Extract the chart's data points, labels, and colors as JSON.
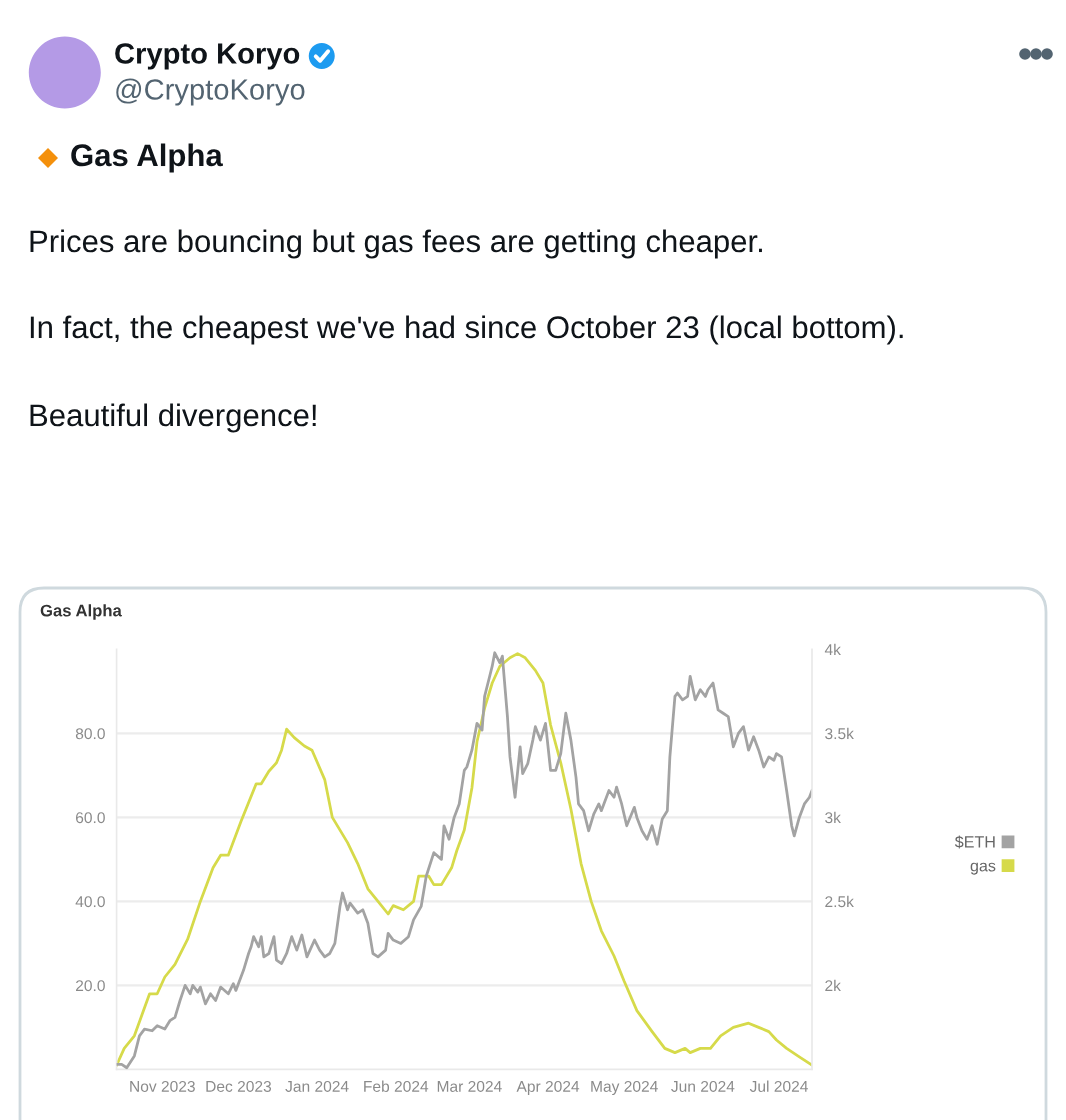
{
  "chart_data": {
    "type": "line",
    "title": "Gas Alpha",
    "annotations": [
      "Crypto Koryo",
      "@CryptoKoryo",
      "Gas Alpha",
      "Prices are bouncing but gas fees are getting cheaper.",
      "In fact, the cheapest we've had since October 23 (local bottom).",
      "Beautiful divergence!"
    ],
    "series": [
      {
        "name": "$ETH",
        "color": "#a3a3a3",
        "axis": "y2",
        "x": [
          "2023-10-14",
          "2023-10-16",
          "2023-10-18",
          "2023-10-21",
          "2023-10-23",
          "2023-10-25",
          "2023-10-28",
          "2023-10-30",
          "2023-11-02",
          "2023-11-04",
          "2023-11-06",
          "2023-11-08",
          "2023-11-10",
          "2023-11-12",
          "2023-11-13",
          "2023-11-15",
          "2023-11-16",
          "2023-11-18",
          "2023-11-20",
          "2023-11-22",
          "2023-11-24",
          "2023-11-27",
          "2023-11-29",
          "2023-11-30",
          "2023-12-03",
          "2023-12-05",
          "2023-12-06",
          "2023-12-07",
          "2023-12-09",
          "2023-12-10",
          "2023-12-11",
          "2023-12-13",
          "2023-12-15",
          "2023-12-16",
          "2023-12-18",
          "2023-12-20",
          "2023-12-22",
          "2023-12-24",
          "2023-12-26",
          "2023-12-28",
          "2023-12-31",
          "2024-01-02",
          "2024-01-04",
          "2024-01-06",
          "2024-01-08",
          "2024-01-10",
          "2024-01-11",
          "2024-01-13",
          "2024-01-14",
          "2024-01-17",
          "2024-01-19",
          "2024-01-21",
          "2024-01-23",
          "2024-01-25",
          "2024-01-28",
          "2024-01-29",
          "2024-01-31",
          "2024-02-03",
          "2024-02-06",
          "2024-02-08",
          "2024-02-11",
          "2024-02-13",
          "2024-02-16",
          "2024-02-19",
          "2024-02-20",
          "2024-02-22",
          "2024-02-24",
          "2024-02-26",
          "2024-02-28",
          "2024-02-29",
          "2024-03-02",
          "2024-03-04",
          "2024-03-06",
          "2024-03-07",
          "2024-03-09",
          "2024-03-10",
          "2024-03-11",
          "2024-03-13",
          "2024-03-14",
          "2024-03-16",
          "2024-03-17",
          "2024-03-19",
          "2024-03-21",
          "2024-03-22",
          "2024-03-24",
          "2024-03-26",
          "2024-03-27",
          "2024-03-29",
          "2024-03-31",
          "2024-04-02",
          "2024-04-04",
          "2024-04-06",
          "2024-04-08",
          "2024-04-10",
          "2024-04-12",
          "2024-04-13",
          "2024-04-15",
          "2024-04-17",
          "2024-04-19",
          "2024-04-21",
          "2024-04-22",
          "2024-04-25",
          "2024-04-27",
          "2024-04-28",
          "2024-04-30",
          "2024-05-02",
          "2024-05-05",
          "2024-05-06",
          "2024-05-08",
          "2024-05-10",
          "2024-05-12",
          "2024-05-14",
          "2024-05-16",
          "2024-05-18",
          "2024-05-19",
          "2024-05-21",
          "2024-05-22",
          "2024-05-24",
          "2024-05-26",
          "2024-05-27",
          "2024-05-29",
          "2024-05-31",
          "2024-06-02",
          "2024-06-03",
          "2024-06-05",
          "2024-06-07",
          "2024-06-09",
          "2024-06-11",
          "2024-06-13",
          "2024-06-15",
          "2024-06-17",
          "2024-06-19",
          "2024-06-21",
          "2024-06-23",
          "2024-06-25",
          "2024-06-27",
          "2024-06-29",
          "2024-06-30",
          "2024-07-02",
          "2024-07-04",
          "2024-07-06",
          "2024-07-07",
          "2024-07-09",
          "2024-07-11",
          "2024-07-13",
          "2024-07-14"
        ],
        "values": [
          1530,
          1530,
          1510,
          1580,
          1700,
          1740,
          1730,
          1760,
          1740,
          1790,
          1810,
          1910,
          2000,
          1950,
          2000,
          1960,
          1990,
          1890,
          1950,
          1910,
          1990,
          1950,
          2010,
          1970,
          2090,
          2190,
          2230,
          2290,
          2230,
          2290,
          2170,
          2190,
          2290,
          2150,
          2130,
          2190,
          2290,
          2210,
          2300,
          2170,
          2270,
          2210,
          2170,
          2190,
          2250,
          2470,
          2550,
          2450,
          2490,
          2430,
          2450,
          2370,
          2190,
          2170,
          2210,
          2310,
          2270,
          2250,
          2290,
          2390,
          2470,
          2650,
          2790,
          2750,
          2950,
          2870,
          3000,
          3080,
          3280,
          3300,
          3400,
          3560,
          3520,
          3720,
          3840,
          3900,
          3980,
          3920,
          3960,
          3600,
          3360,
          3120,
          3420,
          3260,
          3320,
          3460,
          3540,
          3460,
          3560,
          3280,
          3280,
          3380,
          3620,
          3460,
          3240,
          3080,
          3040,
          2920,
          3020,
          3080,
          3040,
          3160,
          3120,
          3180,
          3080,
          2950,
          3060,
          3000,
          2920,
          2870,
          2950,
          2840,
          2990,
          3040,
          3360,
          3720,
          3740,
          3700,
          3720,
          3840,
          3700,
          3760,
          3720,
          3760,
          3800,
          3640,
          3620,
          3600,
          3420,
          3500,
          3540,
          3400,
          3480,
          3400,
          3300,
          3360,
          3340,
          3380,
          3360,
          3160,
          2950,
          2890,
          3000,
          3080,
          3120,
          3160
        ]
      },
      {
        "name": "gas",
        "color": "#d6da4a",
        "x": [
          "2023-10-14",
          "2023-10-17",
          "2023-10-21",
          "2023-10-24",
          "2023-10-27",
          "2023-10-30",
          "2023-11-02",
          "2023-11-06",
          "2023-11-11",
          "2023-11-16",
          "2023-11-21",
          "2023-11-24",
          "2023-11-27",
          "2023-12-02",
          "2023-12-08",
          "2023-12-10",
          "2023-12-13",
          "2023-12-16",
          "2023-12-18",
          "2023-12-20",
          "2023-12-23",
          "2023-12-27",
          "2023-12-30",
          "2024-01-04",
          "2024-01-07",
          "2024-01-13",
          "2024-01-17",
          "2024-01-21",
          "2024-01-25",
          "2024-01-29",
          "2024-01-31",
          "2024-02-04",
          "2024-02-08",
          "2024-02-10",
          "2024-02-14",
          "2024-02-16",
          "2024-02-19",
          "2024-02-23",
          "2024-02-25",
          "2024-02-28",
          "2024-03-02",
          "2024-03-04",
          "2024-03-07",
          "2024-03-10",
          "2024-03-13",
          "2024-03-17",
          "2024-03-20",
          "2024-03-23",
          "2024-03-27",
          "2024-03-30",
          "2024-04-02",
          "2024-04-06",
          "2024-04-10",
          "2024-04-14",
          "2024-04-18",
          "2024-04-22",
          "2024-04-27",
          "2024-05-01",
          "2024-05-06",
          "2024-05-12",
          "2024-05-17",
          "2024-05-21",
          "2024-05-25",
          "2024-05-27",
          "2024-05-31",
          "2024-06-04",
          "2024-06-08",
          "2024-06-13",
          "2024-06-19",
          "2024-06-23",
          "2024-06-27",
          "2024-06-30",
          "2024-07-04",
          "2024-07-09",
          "2024-07-14"
        ],
        "values": [
          1,
          5,
          8,
          13,
          18,
          18,
          22,
          25,
          31,
          40,
          48,
          51,
          51,
          59,
          68,
          68,
          71,
          73,
          76,
          81,
          79,
          77,
          76,
          69,
          60,
          54,
          49,
          43,
          40,
          37,
          39,
          38,
          40,
          46,
          46,
          44,
          44,
          48,
          52,
          57,
          67,
          78,
          86,
          92,
          96,
          98,
          99,
          98,
          95,
          92,
          82,
          73,
          62,
          49,
          40,
          33,
          27,
          21,
          14,
          9,
          5,
          4,
          5,
          4,
          5,
          5,
          8,
          10,
          11,
          10,
          9,
          7,
          5,
          3,
          1
        ]
      }
    ],
    "xlim": [
      "2023-10-14",
      "2024-07-14"
    ],
    "xticks": [
      {
        "value": "2023-11-01",
        "label": "Nov 2023"
      },
      {
        "value": "2023-12-01",
        "label": "Dec 2023"
      },
      {
        "value": "2024-01-01",
        "label": "Jan 2024"
      },
      {
        "value": "2024-02-01",
        "label": "Feb 2024"
      },
      {
        "value": "2024-03-01",
        "label": "Mar 2024"
      },
      {
        "value": "2024-04-01",
        "label": "Apr 2024"
      },
      {
        "value": "2024-05-01",
        "label": "May 2024"
      },
      {
        "value": "2024-06-01",
        "label": "Jun 2024"
      },
      {
        "value": "2024-07-01",
        "label": "Jul 2024"
      }
    ],
    "ylim": [
      0,
      100
    ],
    "yticks": [
      {
        "value": 20,
        "label": "20.0"
      },
      {
        "value": 40,
        "label": "40.0"
      },
      {
        "value": 60,
        "label": "60.0"
      },
      {
        "value": 80,
        "label": "80.0"
      }
    ],
    "y2lim": [
      1500,
      4000
    ],
    "y2ticks": [
      {
        "value": 2000,
        "label": "2k"
      },
      {
        "value": 2500,
        "label": "2.5k"
      },
      {
        "value": 3000,
        "label": "3k"
      },
      {
        "value": 3500,
        "label": "3.5k"
      },
      {
        "value": 4000,
        "label": "4k"
      }
    ],
    "grid": "y",
    "legend": "right"
  }
}
